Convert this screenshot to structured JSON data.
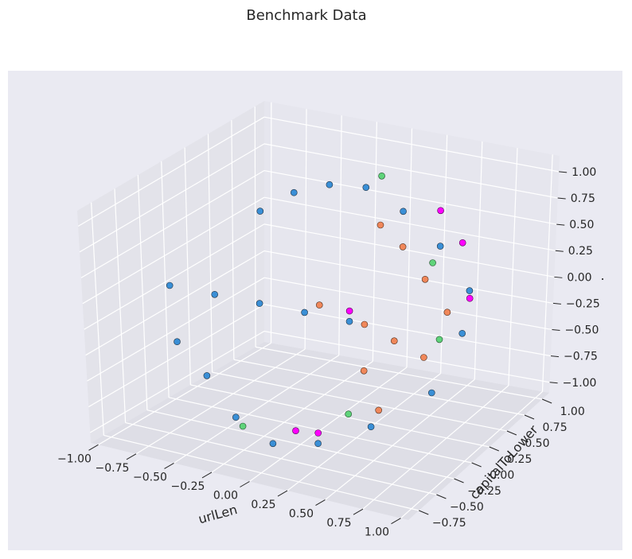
{
  "chart_data": {
    "type": "scatter",
    "projection": "3d",
    "title": "Benchmark Data",
    "xlabel": "urlLen",
    "ylabel": "capitalToLower",
    "zlabel": ".",
    "xlim": [
      -1.05,
      1.05
    ],
    "ylim": [
      -0.9,
      1.1
    ],
    "zlim": [
      -1.1,
      1.15
    ],
    "x_ticks": [
      "−1.00",
      "−0.75",
      "−0.50",
      "−0.25",
      "0.00",
      "0.25",
      "0.50",
      "0.75",
      "1.00"
    ],
    "y_ticks": [
      "−0.75",
      "−0.50",
      "−0.25",
      "0.00",
      "0.25",
      "0.50",
      "0.75",
      "1.00"
    ],
    "z_ticks": [
      "−1.00",
      "−0.75",
      "−0.50",
      "−0.25",
      "0.00",
      "0.25",
      "0.50",
      "0.75",
      "1.00"
    ],
    "grid": true,
    "legend": "none",
    "colors": {
      "figure_bg": "#ffffff",
      "axes_bg": "#eaeaf2",
      "pane_x": "#e3e3ea",
      "pane_y": "#dedee6",
      "pane_z": "#e6e6ee",
      "grid": "#ffffff",
      "text": "#262626"
    },
    "series": [
      {
        "color": "#3a8fd6",
        "edgecolor": "#1f2f3f",
        "points": [
          [
            -0.9,
            0.9,
            0.3
          ],
          [
            -0.6,
            0.8,
            0.6
          ],
          [
            -0.3,
            0.7,
            0.8
          ],
          [
            0.0,
            0.6,
            0.9
          ],
          [
            0.3,
            0.5,
            0.8
          ],
          [
            0.6,
            0.4,
            0.6
          ],
          [
            0.85,
            0.3,
            0.3
          ],
          [
            0.95,
            0.0,
            0.1
          ],
          [
            0.9,
            -0.3,
            -0.3
          ],
          [
            0.6,
            -0.5,
            -0.6
          ],
          [
            0.3,
            -0.6,
            -0.8
          ],
          [
            0.0,
            -0.6,
            -0.9
          ],
          [
            -0.3,
            -0.5,
            -0.8
          ],
          [
            -0.6,
            -0.3,
            -0.6
          ],
          [
            -0.85,
            -0.2,
            -0.4
          ],
          [
            -1.0,
            0.0,
            0.0
          ],
          [
            -0.7,
            0.0,
            0.0
          ],
          [
            -0.4,
            0.0,
            0.0
          ],
          [
            -0.1,
            0.0,
            0.0
          ],
          [
            0.2,
            0.0,
            0.0
          ]
        ]
      },
      {
        "color": "#f0875a",
        "edgecolor": "#4a2a1a",
        "points": [
          [
            0.2,
            0.4,
            0.7
          ],
          [
            0.4,
            0.3,
            0.6
          ],
          [
            0.6,
            0.2,
            0.4
          ],
          [
            0.8,
            0.1,
            0.2
          ],
          [
            0.3,
            0.0,
            0.0
          ],
          [
            0.5,
            0.0,
            -0.1
          ],
          [
            0.7,
            0.0,
            -0.2
          ],
          [
            0.0,
            0.0,
            0.1
          ],
          [
            0.4,
            -0.2,
            -0.3
          ],
          [
            0.6,
            -0.4,
            -0.5
          ]
        ]
      },
      {
        "color": "#ff00ff",
        "edgecolor": "#4a004a",
        "points": [
          [
            0.5,
            0.6,
            0.8
          ],
          [
            0.7,
            0.5,
            0.6
          ],
          [
            0.9,
            0.2,
            0.3
          ],
          [
            0.2,
            0.0,
            0.1
          ],
          [
            0.1,
            -0.5,
            -0.8
          ],
          [
            0.3,
            -0.6,
            -0.7
          ]
        ]
      },
      {
        "color": "#5fd37a",
        "edgecolor": "#1e4a28",
        "points": [
          [
            0.0,
            0.8,
            0.9
          ],
          [
            0.6,
            0.3,
            0.5
          ],
          [
            0.8,
            0.0,
            0.0
          ],
          [
            0.4,
            -0.4,
            -0.6
          ],
          [
            -0.2,
            -0.6,
            -0.8
          ]
        ]
      }
    ]
  }
}
